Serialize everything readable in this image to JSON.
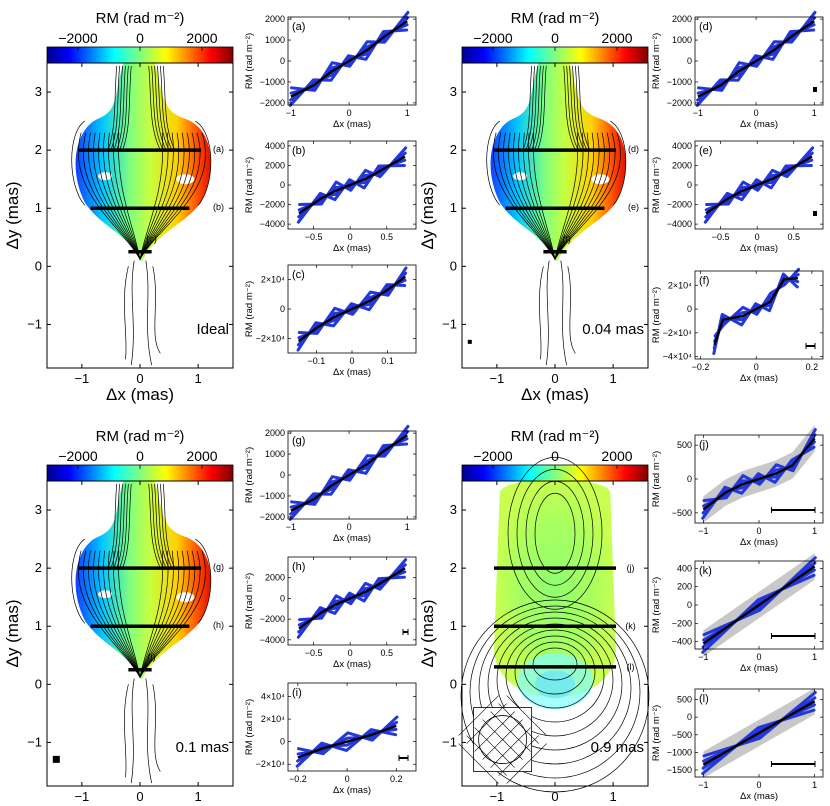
{
  "colors": {
    "series_black": "#000000",
    "series_blue": "#2338dc",
    "uncertainty_band": "#c8c8c8",
    "colormap": "jet"
  },
  "chart_data": [
    {
      "type": "heatmap",
      "title": "RM (rad m⁻²)",
      "colorbar_ticks": [
        "−2000",
        "0",
        "2000"
      ],
      "colorbar_range": [
        -3000,
        3000
      ],
      "xlabel": "Δx (mas)",
      "ylabel": "Δy (mas)",
      "x_ticks": [
        "−1",
        "0",
        "1"
      ],
      "y_ticks": [
        "−1",
        "0",
        "1",
        "2",
        "3"
      ],
      "xlim": [
        -1.6,
        1.6
      ],
      "ylim": [
        -1.75,
        3.5
      ],
      "cuts": [
        {
          "label": "(a)",
          "y": 2.0,
          "x": [
            -1.05,
            1.05
          ]
        },
        {
          "label": "(b)",
          "y": 1.0,
          "x": [
            -0.85,
            0.85
          ]
        },
        {
          "label": "(c)",
          "y": 0.25,
          "x": [
            -0.2,
            0.2
          ]
        }
      ],
      "resolution_label": "Ideal"
    },
    {
      "type": "heatmap",
      "title": "RM (rad m⁻²)",
      "colorbar_ticks": [
        "−2000",
        "0",
        "2000"
      ],
      "colorbar_range": [
        -3000,
        3000
      ],
      "xlabel": "Δx (mas)",
      "ylabel": "Δy (mas)",
      "x_ticks": [
        "−1",
        "0",
        "1"
      ],
      "y_ticks": [
        "−1",
        "0",
        "1",
        "2",
        "3"
      ],
      "xlim": [
        -1.6,
        1.6
      ],
      "ylim": [
        -1.75,
        3.5
      ],
      "cuts": [
        {
          "label": "(d)",
          "y": 2.0,
          "x": [
            -1.05,
            1.05
          ]
        },
        {
          "label": "(e)",
          "y": 1.0,
          "x": [
            -0.85,
            0.85
          ]
        },
        {
          "label": "(f)",
          "y": 0.25,
          "x": [
            -0.2,
            0.2
          ]
        }
      ],
      "resolution_label": "0.04 mas"
    },
    {
      "type": "heatmap",
      "title": "RM (rad m⁻²)",
      "colorbar_ticks": [
        "−2000",
        "0",
        "2000"
      ],
      "colorbar_range": [
        -3000,
        3000
      ],
      "xlabel": "Δx (mas)",
      "ylabel": "Δy (mas)",
      "x_ticks": [
        "−1",
        "0",
        "1"
      ],
      "y_ticks": [
        "−1",
        "0",
        "1",
        "2",
        "3"
      ],
      "xlim": [
        -1.6,
        1.6
      ],
      "ylim": [
        -1.75,
        3.5
      ],
      "cuts": [
        {
          "label": "(g)",
          "y": 2.0,
          "x": [
            -1.05,
            1.05
          ]
        },
        {
          "label": "(h)",
          "y": 1.0,
          "x": [
            -0.85,
            0.85
          ]
        },
        {
          "label": "(i)",
          "y": 0.25,
          "x": [
            -0.2,
            0.2
          ]
        }
      ],
      "resolution_label": "0.1 mas"
    },
    {
      "type": "heatmap",
      "title": "RM (rad m⁻²)",
      "colorbar_ticks": [
        "−2000",
        "0",
        "2000"
      ],
      "colorbar_range": [
        -3000,
        3000
      ],
      "xlabel": "Δx (mas)",
      "ylabel": "Δy (mas)",
      "x_ticks": [
        "−1",
        "0",
        "1"
      ],
      "y_ticks": [
        "−1",
        "0",
        "1",
        "2",
        "3"
      ],
      "xlim": [
        -1.6,
        1.6
      ],
      "ylim": [
        -1.75,
        3.5
      ],
      "cuts": [
        {
          "label": "(j)",
          "y": 2.0,
          "x": [
            -1.05,
            1.05
          ]
        },
        {
          "label": "(k)",
          "y": 1.0,
          "x": [
            -1.05,
            1.05
          ]
        },
        {
          "label": "(l)",
          "y": 0.3,
          "x": [
            -1.05,
            1.05
          ]
        }
      ],
      "resolution_label": "0.9 mas"
    },
    {
      "type": "line",
      "panel": "(a)",
      "xlabel": "Δx (mas)",
      "ylabel": "RM (rad m⁻²)",
      "xlim": [
        -1.05,
        1.15
      ],
      "ylim": [
        -2100,
        2100
      ],
      "x_ticks": [
        -1,
        0,
        1
      ],
      "x_tick_labels": [
        "−1",
        "0",
        "1"
      ],
      "y_ticks": [
        -2000,
        -1000,
        0,
        1000,
        2000
      ],
      "y_tick_labels": [
        "−2000",
        "−1000",
        "0",
        "1000",
        "2000"
      ],
      "series": [
        {
          "x": [
            -1,
            -0.6,
            -0.3,
            0,
            0.3,
            0.6,
            1
          ],
          "y": [
            -1700,
            -1150,
            -500,
            0,
            500,
            1150,
            1900
          ]
        }
      ]
    },
    {
      "type": "line",
      "panel": "(b)",
      "xlabel": "Δx (mas)",
      "ylabel": "RM (rad m⁻²)",
      "xlim": [
        -0.85,
        0.9
      ],
      "ylim": [
        -4500,
        4500
      ],
      "x_ticks": [
        -0.5,
        0,
        0.5
      ],
      "x_tick_labels": [
        "−0.5",
        "0",
        "0.5"
      ],
      "y_ticks": [
        -4000,
        -2000,
        0,
        2000,
        4000
      ],
      "y_tick_labels": [
        "−4000",
        "−2000",
        "0",
        "2000",
        "4000"
      ],
      "series": [
        {
          "x": [
            -0.7,
            -0.4,
            -0.2,
            0,
            0.2,
            0.4,
            0.75
          ],
          "y": [
            -2900,
            -1400,
            -600,
            0,
            600,
            1400,
            2900
          ]
        }
      ]
    },
    {
      "type": "line",
      "panel": "(c)",
      "xlabel": "Δx (mas)",
      "ylabel": "RM (rad m⁻²)",
      "xlim": [
        -0.18,
        0.18
      ],
      "ylim": [
        -30000,
        30000
      ],
      "x_ticks": [
        -0.1,
        0,
        0.1
      ],
      "x_tick_labels": [
        "−0.1",
        "0",
        "0.1"
      ],
      "y_ticks": [
        -20000,
        0,
        20000
      ],
      "y_tick_labels": [
        "−2×10⁴",
        "0",
        "2×10⁴"
      ],
      "series": [
        {
          "x": [
            -0.15,
            -0.1,
            -0.05,
            0,
            0.05,
            0.1,
            0.15
          ],
          "y": [
            -22000,
            -13000,
            -5500,
            0,
            5500,
            13000,
            22000
          ]
        }
      ]
    },
    {
      "type": "line",
      "panel": "(d)",
      "xlabel": "Δx (mas)",
      "ylabel": "RM (rad m⁻²)",
      "xlim": [
        -1.05,
        1.15
      ],
      "ylim": [
        -2100,
        2100
      ],
      "x_ticks": [
        -1,
        0,
        1
      ],
      "x_tick_labels": [
        "−1",
        "0",
        "1"
      ],
      "y_ticks": [
        -2000,
        -1000,
        0,
        1000,
        2000
      ],
      "y_tick_labels": [
        "−2000",
        "−1000",
        "0",
        "1000",
        "2000"
      ],
      "series": [
        {
          "x": [
            -1,
            -0.6,
            -0.3,
            0,
            0.3,
            0.6,
            1
          ],
          "y": [
            -1700,
            -1150,
            -500,
            0,
            500,
            1150,
            1900
          ]
        }
      ]
    },
    {
      "type": "line",
      "panel": "(e)",
      "xlabel": "Δx (mas)",
      "ylabel": "RM (rad m⁻²)",
      "xlim": [
        -0.85,
        0.9
      ],
      "ylim": [
        -4500,
        4500
      ],
      "x_ticks": [
        -0.5,
        0,
        0.5
      ],
      "x_tick_labels": [
        "−0.5",
        "0",
        "0.5"
      ],
      "y_ticks": [
        -4000,
        -2000,
        0,
        2000,
        4000
      ],
      "y_tick_labels": [
        "−4000",
        "−2000",
        "0",
        "2000",
        "4000"
      ],
      "series": [
        {
          "x": [
            -0.7,
            -0.4,
            -0.2,
            0,
            0.2,
            0.4,
            0.75
          ],
          "y": [
            -2900,
            -1400,
            -600,
            0,
            600,
            1400,
            2900
          ]
        }
      ]
    },
    {
      "type": "line",
      "panel": "(f)",
      "xlabel": "Δx (mas)",
      "ylabel": "RM (rad m⁻²)",
      "xlim": [
        -0.22,
        0.24
      ],
      "ylim": [
        -42000,
        32000
      ],
      "x_ticks": [
        -0.2,
        0,
        0.2
      ],
      "x_tick_labels": [
        "−0.2",
        "0",
        "0.2"
      ],
      "y_ticks": [
        -40000,
        -20000,
        0,
        20000
      ],
      "y_tick_labels": [
        "−4×10⁴",
        "−2×10⁴",
        "0",
        "2×10⁴"
      ],
      "series": [
        {
          "x": [
            -0.15,
            -0.12,
            -0.05,
            0,
            0.05,
            0.1,
            0.15
          ],
          "y": [
            -30000,
            -9000,
            -6000,
            0,
            6000,
            25000,
            26000
          ]
        }
      ]
    },
    {
      "type": "line",
      "panel": "(g)",
      "xlabel": "Δx (mas)",
      "ylabel": "RM (rad m⁻²)",
      "xlim": [
        -1.05,
        1.15
      ],
      "ylim": [
        -2100,
        2100
      ],
      "x_ticks": [
        -1,
        0,
        1
      ],
      "x_tick_labels": [
        "−1",
        "0",
        "1"
      ],
      "y_ticks": [
        -2000,
        -1000,
        0,
        1000,
        2000
      ],
      "y_tick_labels": [
        "−2000",
        "−1000",
        "0",
        "1000",
        "2000"
      ],
      "series": [
        {
          "x": [
            -1,
            -0.6,
            -0.3,
            0,
            0.3,
            0.6,
            1
          ],
          "y": [
            -1700,
            -1150,
            -500,
            0,
            500,
            1150,
            1900
          ]
        }
      ]
    },
    {
      "type": "line",
      "panel": "(h)",
      "xlabel": "Δx (mas)",
      "ylabel": "RM (rad m⁻²)",
      "xlim": [
        -0.85,
        0.9
      ],
      "ylim": [
        -4500,
        4000
      ],
      "x_ticks": [
        -0.5,
        0,
        0.5
      ],
      "x_tick_labels": [
        "−0.5",
        "0",
        "0.5"
      ],
      "y_ticks": [
        -4000,
        -2000,
        0,
        2000
      ],
      "y_tick_labels": [
        "−4000",
        "−2000",
        "0",
        "2000"
      ],
      "series": [
        {
          "x": [
            -0.7,
            -0.4,
            -0.2,
            0,
            0.2,
            0.4,
            0.75
          ],
          "y": [
            -2900,
            -1400,
            -600,
            0,
            600,
            1400,
            2900
          ]
        }
      ]
    },
    {
      "type": "line",
      "panel": "(i)",
      "xlabel": "Δx (mas)",
      "ylabel": "RM (rad m⁻²)",
      "xlim": [
        -0.24,
        0.28
      ],
      "ylim": [
        -26000,
        52000
      ],
      "x_ticks": [
        -0.2,
        0,
        0.2
      ],
      "x_tick_labels": [
        "−0.2",
        "0",
        "0.2"
      ],
      "y_ticks": [
        -20000,
        0,
        20000,
        40000
      ],
      "y_tick_labels": [
        "−2×10⁴",
        "0",
        "2×10⁴",
        "4×10⁴"
      ],
      "series": [
        {
          "x": [
            -0.2,
            -0.1,
            0,
            0.1,
            0.2
          ],
          "y": [
            -14000,
            -6000,
            0,
            6000,
            14000
          ]
        }
      ]
    },
    {
      "type": "line",
      "panel": "(j)",
      "xlabel": "Δx (mas)",
      "ylabel": "RM (rad m⁻²)",
      "xlim": [
        -1.15,
        1.15
      ],
      "ylim": [
        -650,
        650
      ],
      "x_ticks": [
        -1,
        0,
        1
      ],
      "x_tick_labels": [
        "−1",
        "0",
        "1"
      ],
      "y_ticks": [
        -500,
        0,
        500
      ],
      "y_tick_labels": [
        "−500",
        "0",
        "500"
      ],
      "series": [
        {
          "x": [
            -1,
            -0.6,
            -0.3,
            0,
            0.3,
            0.6,
            1
          ],
          "y": [
            -450,
            -200,
            -80,
            0,
            80,
            200,
            600
          ]
        }
      ]
    },
    {
      "type": "line",
      "panel": "(k)",
      "xlabel": "Δx (mas)",
      "ylabel": "RM (rad m⁻²)",
      "xlim": [
        -1.15,
        1.15
      ],
      "ylim": [
        -480,
        480
      ],
      "x_ticks": [
        -1,
        0,
        1
      ],
      "x_tick_labels": [
        "−1",
        "0",
        "1"
      ],
      "y_ticks": [
        -400,
        -200,
        0,
        200,
        400
      ],
      "y_tick_labels": [
        "−400",
        "−200",
        "0",
        "200",
        "400"
      ],
      "series": [
        {
          "x": [
            -1,
            0,
            1
          ],
          "y": [
            -420,
            0,
            420
          ]
        }
      ]
    },
    {
      "type": "line",
      "panel": "(l)",
      "xlabel": "Δx (mas)",
      "ylabel": "RM (rad m⁻²)",
      "xlim": [
        -1.15,
        1.15
      ],
      "ylim": [
        -1700,
        800
      ],
      "x_ticks": [
        -1,
        0,
        1
      ],
      "x_tick_labels": [
        "−1",
        "0",
        "1"
      ],
      "y_ticks": [
        -1500,
        -1000,
        -500,
        0,
        500
      ],
      "y_tick_labels": [
        "−1500",
        "−1000",
        "−500",
        "0",
        "500"
      ],
      "series": [
        {
          "x": [
            -1,
            0,
            1
          ],
          "y": [
            -1350,
            -450,
            450
          ]
        }
      ]
    }
  ]
}
